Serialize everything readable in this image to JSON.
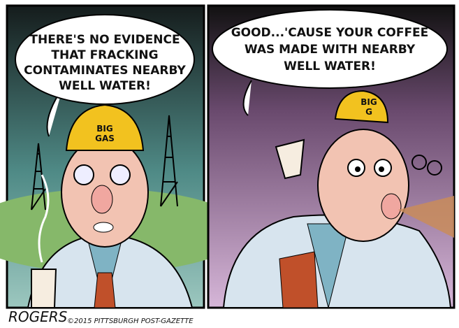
{
  "panels": [
    {
      "speech": [
        "THERE'S NO EVIDENCE",
        "THAT FRACKING",
        "CONTAMINATES NEARBY",
        "WELL WATER!"
      ],
      "hat": [
        "BIG",
        "GAS"
      ]
    },
    {
      "speech": [
        "GOOD...'CAUSE YOUR COFFEE",
        "WAS MADE WITH NEARBY",
        "WELL WATER!"
      ],
      "hat": [
        "BIG",
        "G"
      ]
    }
  ],
  "signature": "ROGERS",
  "copyright": "©2015 PITTSBURGH POST-GAZETTE"
}
